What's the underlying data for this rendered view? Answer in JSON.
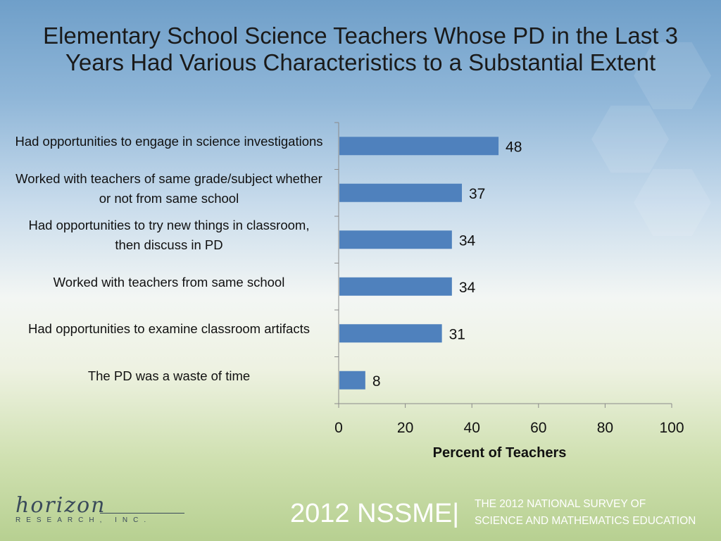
{
  "title": "Elementary School Science Teachers Whose PD in the Last 3 Years Had Various Characteristics to a Substantial Extent",
  "footer": {
    "logo_name": "horizon",
    "logo_sub": "RESEARCH, INC.",
    "brand": "2012 NSSME|",
    "subtitle_line1": "THE 2012 NATIONAL SURVEY OF",
    "subtitle_line2": "SCIENCE AND MATHEMATICS EDUCATION"
  },
  "colors": {
    "bar": "#4f81bd",
    "axis": "#8a8a8a"
  },
  "chart_data": {
    "type": "bar",
    "orientation": "horizontal",
    "categories": [
      "Had opportunities to engage in science investigations",
      "Worked with teachers of same grade/subject whether or not from same school",
      "Had opportunities to try new things in classroom, then discuss in PD",
      "Worked with teachers from same school",
      "Had opportunities to examine classroom artifacts",
      "The PD was a waste of time"
    ],
    "values": [
      48,
      37,
      34,
      34,
      31,
      8
    ],
    "xlabel": "Percent of Teachers",
    "xlim": [
      0,
      100
    ],
    "xticks": [
      "0",
      "20",
      "40",
      "60",
      "80",
      "100"
    ],
    "grid": false,
    "legend": "none"
  }
}
